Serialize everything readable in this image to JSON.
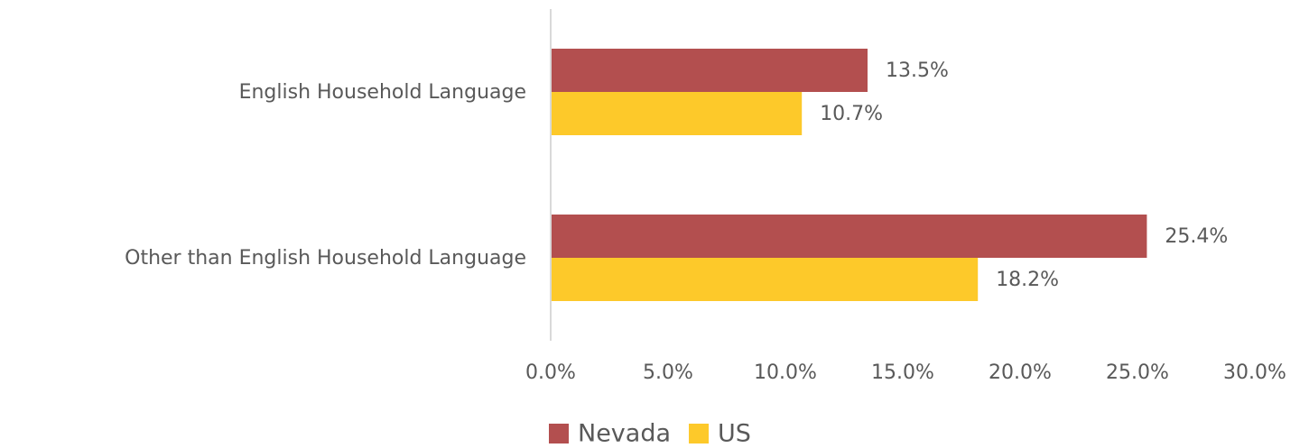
{
  "chart_data": {
    "type": "hbar",
    "categories": [
      "English Household Language",
      "Other than English Household Language"
    ],
    "series": [
      {
        "name": "Nevada",
        "color": "#b34f4f",
        "values": [
          13.5,
          25.4
        ],
        "value_labels": [
          "13.5%",
          "25.4%"
        ]
      },
      {
        "name": "US",
        "color": "#fdc92a",
        "values": [
          10.7,
          18.2
        ],
        "value_labels": [
          "10.7%",
          "18.2%"
        ]
      }
    ],
    "xlim": [
      0,
      30
    ],
    "xticks": [
      {
        "value": 0,
        "label": "0.0%"
      },
      {
        "value": 5,
        "label": "5.0%"
      },
      {
        "value": 10,
        "label": "10.0%"
      },
      {
        "value": 15,
        "label": "15.0%"
      },
      {
        "value": 20,
        "label": "20.0%"
      },
      {
        "value": 25,
        "label": "25.0%"
      },
      {
        "value": 30,
        "label": "30.0%"
      }
    ],
    "grid": false,
    "legend": "bottom"
  }
}
